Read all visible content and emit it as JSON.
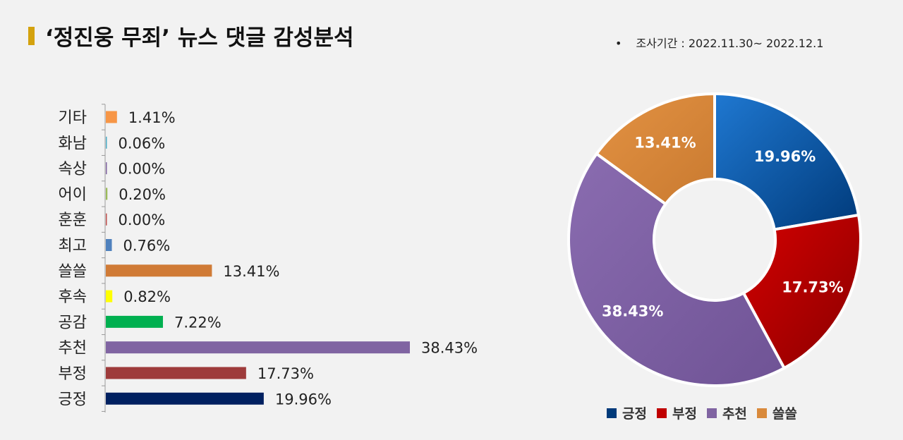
{
  "header": {
    "title": "‘정진웅 무죄’ 뉴스 댓글 감성분석",
    "period_bullet": "•",
    "period": "조사기간 : 2022.11.30~ 2022.12.1"
  },
  "chart_data": [
    {
      "type": "bar",
      "orientation": "horizontal",
      "categories": [
        "기타",
        "화남",
        "속상",
        "어이",
        "훈훈",
        "최고",
        "쓸쓸",
        "후속",
        "공감",
        "추천",
        "부정",
        "긍정"
      ],
      "values": [
        1.41,
        0.06,
        0.0,
        0.2,
        0.0,
        0.76,
        13.41,
        0.82,
        7.22,
        38.43,
        17.73,
        19.96
      ],
      "value_labels": [
        "1.41%",
        "0.06%",
        "0.00%",
        "0.20%",
        "0.00%",
        "0.76%",
        "13.41%",
        "0.82%",
        "7.22%",
        "38.43%",
        "17.73%",
        "19.96%"
      ],
      "colors": [
        "#f79646",
        "#4bacc6",
        "#8064a2",
        "#9bbb59",
        "#c0504d",
        "#4f81bd",
        "#d07b36",
        "#ffff00",
        "#00b050",
        "#8064a2",
        "#9e3b3b",
        "#002060"
      ],
      "unit": "%"
    },
    {
      "type": "pie",
      "variant": "donut",
      "categories": [
        "긍정",
        "부정",
        "추천",
        "쓸쓸"
      ],
      "values": [
        19.96,
        17.73,
        38.43,
        13.41
      ],
      "value_labels": [
        "19.96%",
        "17.73%",
        "38.43%",
        "13.41%"
      ],
      "colors": [
        "#0a5fb4",
        "#c00000",
        "#8064a2",
        "#d98a3c"
      ],
      "legend": "bottom"
    }
  ]
}
